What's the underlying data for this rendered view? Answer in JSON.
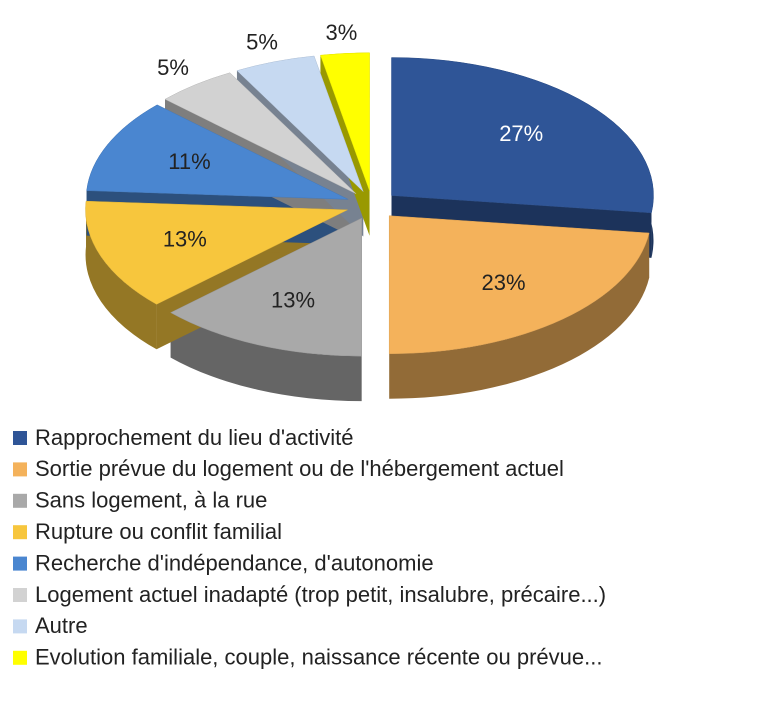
{
  "chart_data": {
    "type": "pie",
    "categories": [
      "Rapprochement du lieu d'activité",
      "Sortie prévue du logement ou de l'hébergement actuel",
      "Sans logement, à la rue",
      "Rupture ou conflit familial",
      "Recherche d'indépendance, d'autonomie",
      "Logement actuel inadapté (trop petit, insalubre, précaire...)",
      "Autre",
      "Evolution familiale, couple, naissance récente ou prévue..."
    ],
    "values": [
      27,
      23,
      13,
      13,
      11,
      5,
      5,
      3
    ],
    "value_labels": [
      "27%",
      "23%",
      "13%",
      "13%",
      "11%",
      "5%",
      "5%",
      "3%"
    ],
    "colors": [
      "#2f5597",
      "#f4b25b",
      "#a9a9a9",
      "#f7c63d",
      "#4a86d0",
      "#d2d2d2",
      "#c6d9f1",
      "#ffff00"
    ],
    "legend": "bottom"
  }
}
